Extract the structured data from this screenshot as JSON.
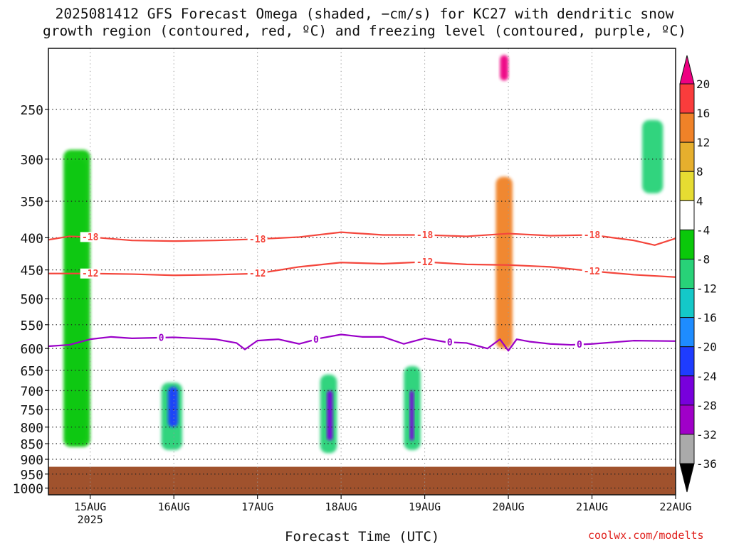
{
  "title_line1": "2025081412 GFS Forecast Omega (shaded, −cm/s) for KC27 with dendritic snow",
  "title_line2": "growth region (contoured, red, ºC) and freezing level (contoured, purple, ºC)",
  "credit": "coolwx.com/modelts",
  "colors": {
    "red_contour": "#f4463c",
    "purple_contour": "#9a00c8",
    "ground": "#a0522d",
    "grid": "#222222"
  },
  "chart_data": {
    "type": "heatmap",
    "title": "2025081412 GFS Forecast Omega (shaded, −cm/s) for KC27 with dendritic snow growth region (contoured, red, ºC) and freezing level (contoured, purple, ºC)",
    "xlabel": "Forecast Time (UTC)",
    "ylabel": "",
    "y_scale": "log",
    "y_ticks": [
      250,
      300,
      350,
      400,
      450,
      500,
      550,
      600,
      650,
      700,
      750,
      800,
      850,
      900,
      950,
      1000
    ],
    "y_tick_labels": [
      "250",
      "300",
      "350",
      "400",
      "450",
      "500",
      "550",
      "600",
      "650",
      "700",
      "750",
      "800",
      "850",
      "900",
      "950",
      "1000"
    ],
    "ylim": [
      1025,
      200
    ],
    "x_ticks": [
      {
        "day": 15,
        "label": "15AUG",
        "sublabel": "2025"
      },
      {
        "day": 16,
        "label": "16AUG",
        "sublabel": ""
      },
      {
        "day": 17,
        "label": "17AUG",
        "sublabel": ""
      },
      {
        "day": 18,
        "label": "18AUG",
        "sublabel": ""
      },
      {
        "day": 19,
        "label": "19AUG",
        "sublabel": ""
      },
      {
        "day": 20,
        "label": "20AUG",
        "sublabel": ""
      },
      {
        "day": 21,
        "label": "21AUG",
        "sublabel": ""
      },
      {
        "day": 22,
        "label": "22AUG",
        "sublabel": ""
      }
    ],
    "xlim_days": [
      14.5,
      22.0
    ],
    "grid": true,
    "colorbar": {
      "labels": [
        "20",
        "16",
        "12",
        "8",
        "4",
        "-4",
        "-8",
        "-12",
        "-16",
        "-20",
        "-24",
        "-28",
        "-32",
        "-36"
      ],
      "colors": [
        "#ee0082",
        "#fa3c3c",
        "#f08228",
        "#e6af2d",
        "#e6dc32",
        "#ffffff",
        "#0ac80a",
        "#28d278",
        "#14c8c8",
        "#1e8cff",
        "#1e3cff",
        "#7800dc",
        "#a000c8",
        "#aaaaaa",
        "#000000"
      ]
    },
    "ground_pressure": 925,
    "contours": [
      {
        "label": "-18",
        "color": "#f4463c",
        "points": [
          [
            14.5,
            403
          ],
          [
            14.75,
            398
          ],
          [
            15.0,
            399
          ],
          [
            15.5,
            404
          ],
          [
            16.0,
            405
          ],
          [
            16.5,
            404
          ],
          [
            17.0,
            402
          ],
          [
            17.5,
            399
          ],
          [
            18.0,
            392
          ],
          [
            18.5,
            396
          ],
          [
            19.0,
            396
          ],
          [
            19.5,
            398
          ],
          [
            20.0,
            394
          ],
          [
            20.5,
            397
          ],
          [
            21.0,
            396
          ],
          [
            21.5,
            404
          ],
          [
            21.75,
            411
          ],
          [
            22.0,
            401
          ]
        ],
        "labels_at": [
          15.0,
          17.0,
          19.0,
          21.0
        ]
      },
      {
        "label": "-12",
        "color": "#f4463c",
        "points": [
          [
            14.5,
            456
          ],
          [
            15.0,
            456
          ],
          [
            15.5,
            457
          ],
          [
            16.0,
            459
          ],
          [
            16.5,
            458
          ],
          [
            17.0,
            456
          ],
          [
            17.5,
            445
          ],
          [
            18.0,
            438
          ],
          [
            18.5,
            440
          ],
          [
            19.0,
            437
          ],
          [
            19.5,
            441
          ],
          [
            20.0,
            442
          ],
          [
            20.5,
            445
          ],
          [
            21.0,
            452
          ],
          [
            21.5,
            458
          ],
          [
            22.0,
            462
          ]
        ],
        "labels_at": [
          15.0,
          17.0,
          19.0,
          21.0
        ]
      },
      {
        "label": "0",
        "color": "#9a00c8",
        "points": [
          [
            14.5,
            595
          ],
          [
            14.75,
            592
          ],
          [
            15.0,
            580
          ],
          [
            15.25,
            575
          ],
          [
            15.5,
            578
          ],
          [
            16.0,
            576
          ],
          [
            16.5,
            580
          ],
          [
            16.75,
            588
          ],
          [
            16.85,
            602
          ],
          [
            17.0,
            583
          ],
          [
            17.25,
            580
          ],
          [
            17.5,
            590
          ],
          [
            17.75,
            578
          ],
          [
            18.0,
            570
          ],
          [
            18.25,
            575
          ],
          [
            18.5,
            575
          ],
          [
            18.75,
            590
          ],
          [
            19.0,
            578
          ],
          [
            19.25,
            586
          ],
          [
            19.5,
            588
          ],
          [
            19.75,
            600
          ],
          [
            19.9,
            580
          ],
          [
            20.0,
            605
          ],
          [
            20.1,
            580
          ],
          [
            20.25,
            585
          ],
          [
            20.5,
            590
          ],
          [
            20.75,
            592
          ],
          [
            21.0,
            590
          ],
          [
            21.5,
            583
          ],
          [
            22.0,
            584
          ]
        ],
        "labels_at": [
          15.85,
          17.7,
          19.3,
          20.85
        ]
      }
    ],
    "shaded_regions": [
      {
        "omega": -12,
        "t": [
          14.72,
          14.95
        ],
        "p": [
          300,
          850
        ]
      },
      {
        "omega": -8,
        "t": [
          14.68,
          15.0
        ],
        "p": [
          290,
          860
        ]
      },
      {
        "omega": -12,
        "t": [
          15.85,
          16.1
        ],
        "p": [
          680,
          870
        ]
      },
      {
        "omega": -24,
        "t": [
          15.93,
          16.05
        ],
        "p": [
          690,
          800
        ]
      },
      {
        "omega": -12,
        "t": [
          17.75,
          17.95
        ],
        "p": [
          660,
          880
        ]
      },
      {
        "omega": -28,
        "t": [
          17.83,
          17.9
        ],
        "p": [
          700,
          840
        ]
      },
      {
        "omega": -12,
        "t": [
          18.75,
          18.95
        ],
        "p": [
          640,
          870
        ]
      },
      {
        "omega": -28,
        "t": [
          18.82,
          18.87
        ],
        "p": [
          700,
          840
        ]
      },
      {
        "omega": 12,
        "t": [
          19.85,
          20.05
        ],
        "p": [
          320,
          600
        ]
      },
      {
        "omega": 20,
        "t": [
          19.9,
          20.0
        ],
        "p": [
          205,
          225
        ]
      },
      {
        "omega": -12,
        "t": [
          21.6,
          21.85
        ],
        "p": [
          260,
          340
        ]
      }
    ]
  }
}
